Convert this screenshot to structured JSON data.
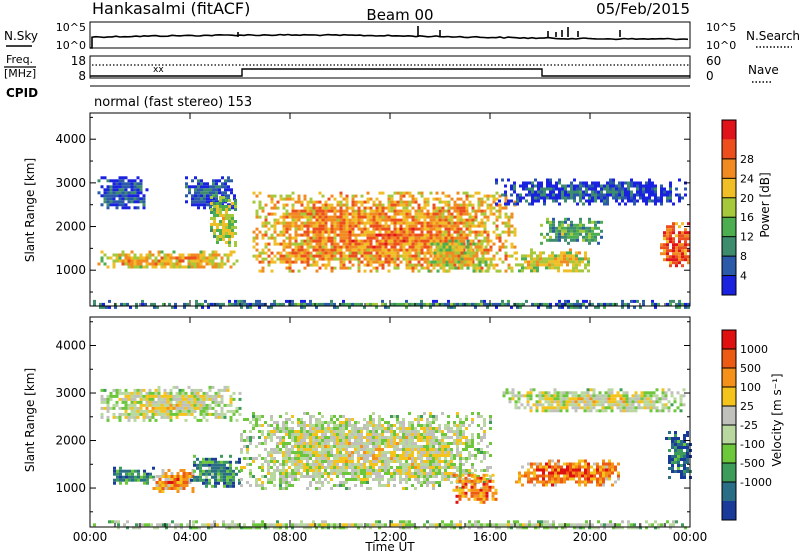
{
  "header": {
    "station": "Hankasalmi (fitACF)",
    "beam": "Beam 00",
    "date": "05/Feb/2015"
  },
  "noise_panel": {
    "left_label": "N.Sky",
    "right_label": "N.Search",
    "left_ticks": [
      "10^5",
      "10^0"
    ],
    "right_ticks": [
      "10^5",
      "10^0"
    ]
  },
  "freq_panel": {
    "left_label_line1": "Freq.",
    "left_label_line2": "[MHz]",
    "left_ticks": [
      "18",
      "8"
    ],
    "right_ticks": [
      "60",
      "0"
    ],
    "right_label": "Nave",
    "cpid_label": "CPID",
    "mode_text": "normal (fast stereo) 153"
  },
  "chart_data": [
    {
      "type": "heatmap",
      "name": "power",
      "ylabel": "Slant Range [km]",
      "xlabel": "",
      "yticks": [
        1000,
        2000,
        3000,
        4000
      ],
      "ylim": [
        180,
        4600
      ],
      "xlim_hours": [
        0,
        24
      ],
      "colorbar": {
        "label": "Power [dB]",
        "ticks": [
          "4",
          "8",
          "12",
          "16",
          "20",
          "24",
          "28"
        ],
        "colors": [
          "#1a22e0",
          "#2a5aa8",
          "#3d8c6e",
          "#4dae4f",
          "#a5c93a",
          "#f0bf28",
          "#f28a22",
          "#ec4e1e",
          "#e0121a"
        ]
      },
      "bands": [
        {
          "t0": 0.3,
          "t1": 6.0,
          "r0": 1050,
          "r1": 1450,
          "level": 0.62
        },
        {
          "t0": 0.3,
          "t1": 2.3,
          "r0": 2450,
          "r1": 3150,
          "level": 0.12
        },
        {
          "t0": 3.8,
          "t1": 5.8,
          "r0": 2450,
          "r1": 3150,
          "level": 0.12
        },
        {
          "t0": 4.8,
          "t1": 5.8,
          "r0": 1550,
          "r1": 2700,
          "level": 0.48
        },
        {
          "t0": 6.5,
          "t1": 17.0,
          "r0": 950,
          "r1": 2800,
          "level": 0.68
        },
        {
          "t0": 13.5,
          "t1": 16.0,
          "r0": 1000,
          "r1": 1700,
          "level": 0.55
        },
        {
          "t0": 16.2,
          "t1": 23.8,
          "r0": 2550,
          "r1": 3100,
          "level": 0.12
        },
        {
          "t0": 17.0,
          "t1": 20.0,
          "r0": 1000,
          "r1": 1500,
          "level": 0.58
        },
        {
          "t0": 18.0,
          "t1": 20.5,
          "r0": 1650,
          "r1": 2200,
          "level": 0.35
        },
        {
          "t0": 22.8,
          "t1": 24.0,
          "r0": 1100,
          "r1": 2100,
          "level": 0.8
        },
        {
          "t0": 0.0,
          "t1": 24.0,
          "r0": 180,
          "r1": 320,
          "level": 0.25
        }
      ]
    },
    {
      "type": "heatmap",
      "name": "velocity",
      "ylabel": "Slant Range [km]",
      "xlabel": "Time UT",
      "yticks": [
        1000,
        2000,
        3000,
        4000
      ],
      "ylim": [
        180,
        4600
      ],
      "xlim_hours": [
        0,
        24
      ],
      "xticks": [
        "00:00",
        "04:00",
        "08:00",
        "12:00",
        "16:00",
        "20:00",
        "00:00"
      ],
      "colorbar": {
        "label": "Velocity [m s⁻¹]",
        "ticks": [
          "1000",
          "500",
          "100",
          "25",
          "-25",
          "-100",
          "-500",
          "-1000"
        ],
        "colors": [
          "#1a3a9a",
          "#2a6e86",
          "#3d9c5a",
          "#6cc83a",
          "#b8d8a0",
          "#c0c0bc",
          "#f5c41c",
          "#f59018",
          "#ec5a14",
          "#e01010"
        ]
      },
      "bands": [
        {
          "t0": 0.3,
          "t1": 6.0,
          "r0": 2450,
          "r1": 3150,
          "level": 0.5
        },
        {
          "t0": 0.8,
          "t1": 2.5,
          "r0": 1100,
          "r1": 1450,
          "level": 0.2
        },
        {
          "t0": 2.5,
          "t1": 4.2,
          "r0": 950,
          "r1": 1400,
          "level": 0.72
        },
        {
          "t0": 4.0,
          "t1": 6.0,
          "r0": 1050,
          "r1": 1700,
          "level": 0.22
        },
        {
          "t0": 6.0,
          "t1": 16.0,
          "r0": 1000,
          "r1": 2600,
          "level": 0.5
        },
        {
          "t0": 14.5,
          "t1": 16.2,
          "r0": 700,
          "r1": 1300,
          "level": 0.8
        },
        {
          "t0": 16.5,
          "t1": 23.8,
          "r0": 2600,
          "r1": 3100,
          "level": 0.5
        },
        {
          "t0": 17.0,
          "t1": 21.2,
          "r0": 1050,
          "r1": 1600,
          "level": 0.78
        },
        {
          "t0": 23.0,
          "t1": 24.0,
          "r0": 1200,
          "r1": 2200,
          "level": 0.15
        },
        {
          "t0": 0.0,
          "t1": 24.0,
          "r0": 180,
          "r1": 320,
          "level": 0.45
        }
      ]
    }
  ]
}
